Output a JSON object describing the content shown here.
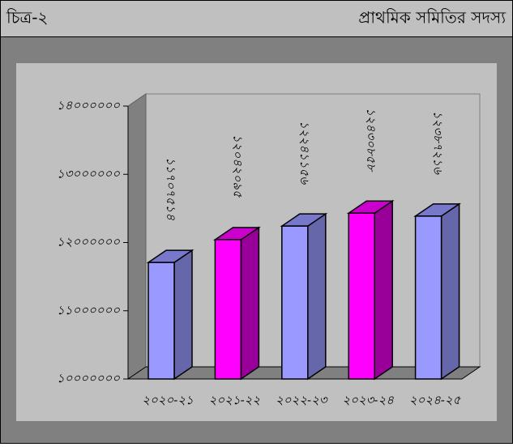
{
  "header": {
    "left": "চিত্র-২",
    "right": "প্রাথমিক সমিতির সদস্য"
  },
  "chart_data": {
    "type": "bar3d",
    "categories": [
      "২০২০-২১",
      "২০২১-২২",
      "২০২২-২৩",
      "২০২৩-২৪",
      "২০২৪-২৫"
    ],
    "values": [
      11707514,
      12042095,
      12241156,
      12430858,
      12387216
    ],
    "value_labels": [
      "১১৭০৭৫১৪",
      "১২০৪২০৯৫",
      "১২২৪১১৫৬",
      "১২৪৩০৮৫৮",
      "১২৩৮৭২১৬"
    ],
    "colors": [
      "#9999ff",
      "#ff00ff",
      "#9999ff",
      "#ff00ff",
      "#9999ff"
    ],
    "side_colors": [
      "#6666aa",
      "#990099",
      "#6666aa",
      "#990099",
      "#6666aa"
    ],
    "ylim": [
      10000000,
      14000000
    ],
    "yticks": [
      {
        "value": 10000000,
        "label": "১০০০০০০০"
      },
      {
        "value": 11000000,
        "label": "১১০০০০০০"
      },
      {
        "value": 12000000,
        "label": "১২০০০০০০"
      },
      {
        "value": 13000000,
        "label": "১৩০০০০০০"
      },
      {
        "value": 14000000,
        "label": "১৪০০০০০০"
      }
    ],
    "grid": false
  }
}
